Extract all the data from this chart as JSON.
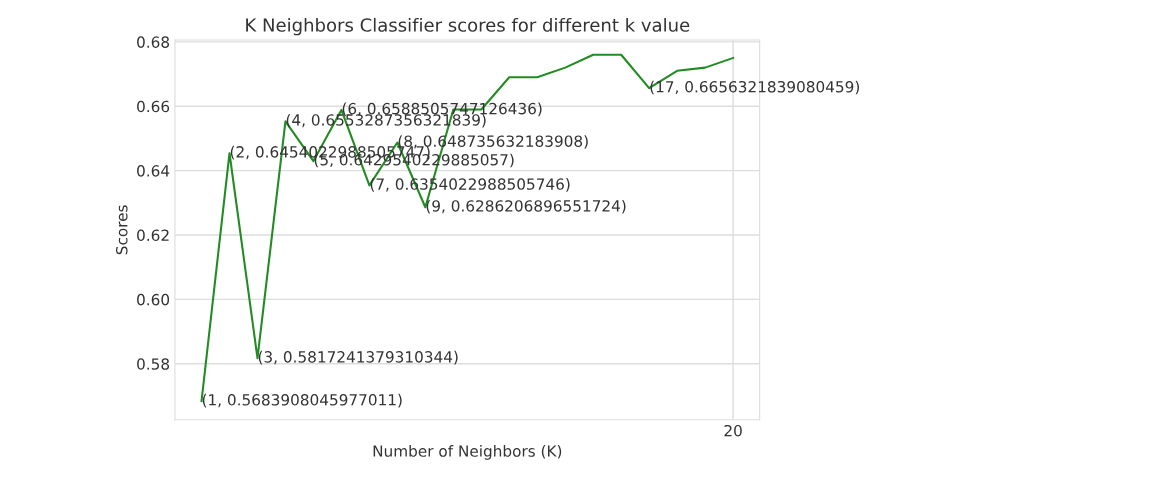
{
  "chart_data": {
    "type": "line",
    "title": "K Neighbors Classifier scores for different k value",
    "xlabel": "Number of Neighbors (K)",
    "ylabel": "Scores",
    "categories": [
      null,
      null,
      null,
      null,
      null,
      null,
      null,
      null,
      null,
      null,
      null,
      null,
      null,
      null,
      null,
      null,
      null,
      null,
      null,
      "20"
    ],
    "series": [
      {
        "color": "#228b22",
        "values": [
          0.5683908045977011,
          0.6454022988505747,
          0.5817241379310344,
          0.6553287356321839,
          0.6429540229885057,
          0.6588505747126436,
          0.6354022988505746,
          0.648735632183908,
          0.6286206896551724,
          0.659,
          0.659,
          0.669,
          0.669,
          0.672,
          0.676,
          0.676,
          0.6656321839080459,
          0.671,
          0.672,
          0.675
        ],
        "value_labels": [
          "(1, 0.5683908045977011)",
          "(2, 0.6454022988505747)",
          "(3, 0.5817241379310344)",
          "(4, 0.6553287356321839)",
          "(5, 0.6429540229885057)",
          "(6, 0.6588505747126436)",
          "(7, 0.6354022988505746)",
          "(8, 0.648735632183908)",
          "(9, 0.6286206896551724)",
          null,
          null,
          null,
          null,
          null,
          null,
          null,
          "(17, 0.6656321839080459)",
          null,
          null,
          null
        ]
      }
    ],
    "ylim": [
      0.5626,
      0.6806
    ],
    "yticks": [
      0.58,
      {
        "value": 0.6,
        "label": "0.60"
      },
      0.62,
      0.64,
      0.66,
      0.68
    ],
    "grid": true,
    "marker": "none",
    "line_style": "solid",
    "legend": false
  }
}
